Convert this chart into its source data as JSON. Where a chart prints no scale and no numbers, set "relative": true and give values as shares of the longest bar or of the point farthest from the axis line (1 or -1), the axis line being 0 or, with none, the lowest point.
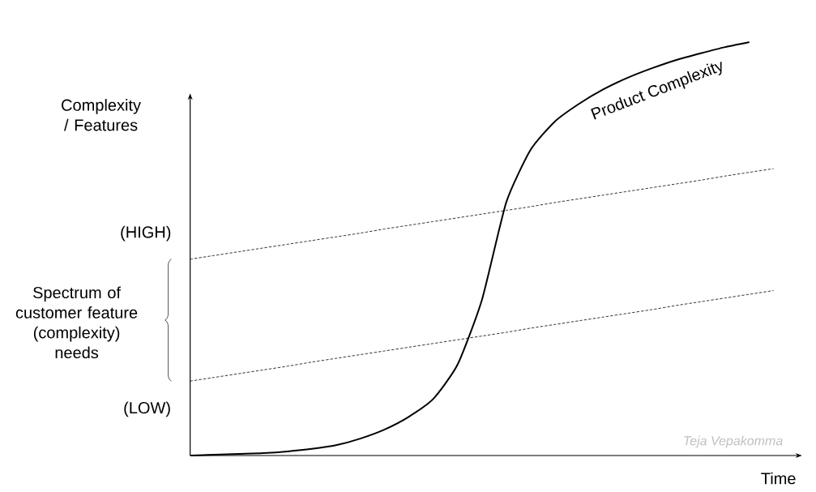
{
  "chart_data": {
    "type": "line",
    "relative": true,
    "xlabel": "Time",
    "ylabel": "Complexity / Features",
    "categories": [
      null,
      null,
      null,
      null,
      null,
      null,
      null,
      null,
      null,
      null,
      null,
      null,
      null,
      null,
      null,
      null,
      null,
      null,
      null,
      null,
      null,
      null,
      null,
      null,
      null,
      null
    ],
    "series": [
      {
        "name": "Product Complexity",
        "color": "#000000",
        "line_style": "solid",
        "values": [
          0,
          0.002,
          0.004,
          0.006,
          0.01,
          0.016,
          0.025,
          0.041,
          0.063,
          0.094,
          0.137,
          0.22,
          0.376,
          0.612,
          0.739,
          0.808,
          0.851,
          0.886,
          0.914,
          0.937,
          0.957,
          0.973,
          0.988,
          1,
          null,
          null
        ]
      },
      {
        "color": "#000000",
        "line_style": "dashed",
        "values": [
          0.475,
          0.484,
          0.493,
          0.502,
          0.511,
          0.52,
          0.529,
          0.538,
          0.548,
          0.557,
          0.566,
          0.575,
          0.584,
          0.593,
          0.602,
          0.612,
          0.621,
          0.63,
          0.639,
          0.648,
          0.657,
          0.666,
          0.676,
          0.685,
          0.694,
          null
        ]
      },
      {
        "color": "#000000",
        "line_style": "dashed",
        "values": [
          0.18,
          0.189,
          0.198,
          0.207,
          0.216,
          0.226,
          0.235,
          0.244,
          0.253,
          0.262,
          0.271,
          0.28,
          0.289,
          0.298,
          0.308,
          0.317,
          0.326,
          0.335,
          0.344,
          0.353,
          0.363,
          0.372,
          0.381,
          0.39,
          0.399,
          null
        ]
      }
    ],
    "annotations": [
      "(HIGH)",
      "(LOW)",
      "Spectrum of customer feature (complexity) needs",
      "Teja Vepakomma"
    ],
    "legend": false,
    "marker": "none"
  }
}
